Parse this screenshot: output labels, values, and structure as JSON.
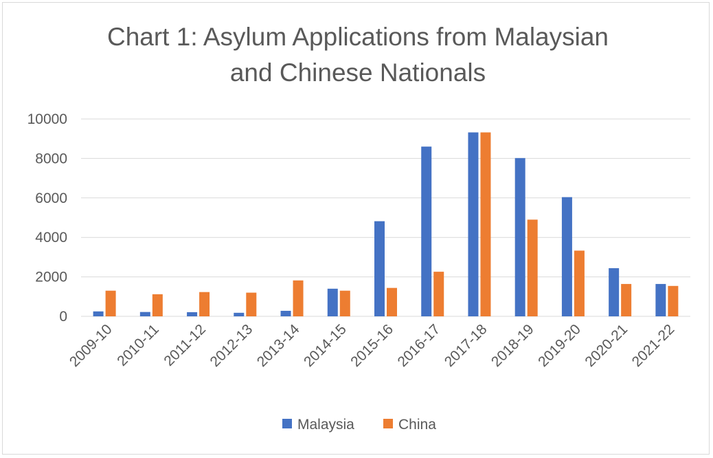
{
  "chart_data": {
    "type": "bar",
    "title_lines": [
      "Chart 1: Asylum Applications from Malaysian",
      "and Chinese Nationals"
    ],
    "xlabel": "",
    "ylabel": "",
    "ylim": [
      0,
      10000
    ],
    "yticks": [
      0,
      2000,
      4000,
      6000,
      8000,
      10000
    ],
    "grid": true,
    "legend_position": "bottom",
    "categories": [
      "2009-10",
      "2010-11",
      "2011-12",
      "2012-13",
      "2013-14",
      "2014-15",
      "2015-16",
      "2016-17",
      "2017-18",
      "2018-19",
      "2019-20",
      "2020-21",
      "2021-22"
    ],
    "series": [
      {
        "name": "Malaysia",
        "color": "#4472C4",
        "values": [
          250,
          220,
          210,
          180,
          280,
          1400,
          4820,
          8600,
          9320,
          8020,
          6040,
          2440,
          1640
        ]
      },
      {
        "name": "China",
        "color": "#ED7D31",
        "values": [
          1300,
          1120,
          1230,
          1200,
          1820,
          1300,
          1440,
          2260,
          9320,
          4900,
          3330,
          1640,
          1540
        ]
      }
    ]
  }
}
